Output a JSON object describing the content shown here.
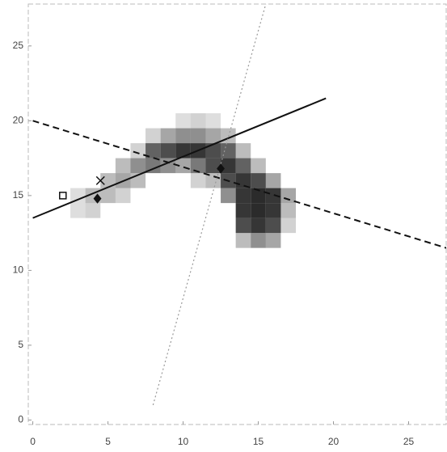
{
  "chart_data": {
    "type": "heatmap",
    "xlim": [
      -0.3,
      27.5
    ],
    "ylim": [
      -0.3,
      27.8
    ],
    "xticks": [
      0,
      5,
      10,
      15,
      20,
      25
    ],
    "yticks": [
      0,
      5,
      10,
      15,
      20,
      25
    ],
    "cmap_color": "#202020",
    "cells": {
      "x": [
        10,
        11,
        12,
        8,
        9,
        10,
        11,
        12,
        13,
        7,
        8,
        9,
        10,
        11,
        12,
        13,
        14,
        6,
        7,
        8,
        9,
        10,
        11,
        12,
        13,
        14,
        15,
        5,
        6,
        7,
        11,
        12,
        13,
        14,
        15,
        16,
        3,
        4,
        5,
        6,
        13,
        14,
        15,
        16,
        17,
        3,
        4,
        14,
        15,
        16,
        17,
        14,
        15,
        16,
        17,
        14,
        15,
        16
      ],
      "y": [
        20,
        20,
        20,
        19,
        19,
        19,
        19,
        19,
        19,
        18,
        18,
        18,
        18,
        18,
        18,
        18,
        18,
        17,
        17,
        17,
        17,
        17,
        17,
        17,
        17,
        17,
        17,
        16,
        16,
        16,
        16,
        16,
        16,
        16,
        16,
        16,
        15,
        15,
        15,
        15,
        15,
        15,
        15,
        15,
        15,
        14,
        14,
        14,
        14,
        14,
        14,
        13,
        13,
        13,
        13,
        12,
        12,
        12
      ],
      "values": [
        0.15,
        0.2,
        0.15,
        0.2,
        0.4,
        0.5,
        0.5,
        0.4,
        0.3,
        0.2,
        0.7,
        0.8,
        0.9,
        0.9,
        0.8,
        0.7,
        0.3,
        0.3,
        0.5,
        0.6,
        0.5,
        0.4,
        0.6,
        0.8,
        0.9,
        0.7,
        0.3,
        0.3,
        0.4,
        0.3,
        0.2,
        0.3,
        0.8,
        0.9,
        0.8,
        0.4,
        0.15,
        0.3,
        0.3,
        0.2,
        0.5,
        0.9,
        0.95,
        0.9,
        0.4,
        0.15,
        0.2,
        0.9,
        0.95,
        0.9,
        0.3,
        0.8,
        0.9,
        0.8,
        0.2,
        0.3,
        0.5,
        0.4
      ]
    },
    "lines": [
      {
        "x": [
          0,
          19.5
        ],
        "y": [
          13.5,
          21.5
        ],
        "color": "#111111",
        "style": "solid"
      },
      {
        "x": [
          0,
          27.5
        ],
        "y": [
          20,
          11.5
        ],
        "color": "#111111",
        "style": "dashed"
      },
      {
        "x": [
          8,
          15.5
        ],
        "y": [
          1,
          27.8
        ],
        "color": "#999999",
        "style": "dotted"
      }
    ],
    "points": {
      "x": [
        2,
        4.5,
        4.3,
        12.5
      ],
      "y": [
        15,
        16,
        14.8,
        16.8
      ],
      "markers": [
        "square",
        "x",
        "diamond",
        "diamond"
      ],
      "color": "#111111"
    }
  }
}
